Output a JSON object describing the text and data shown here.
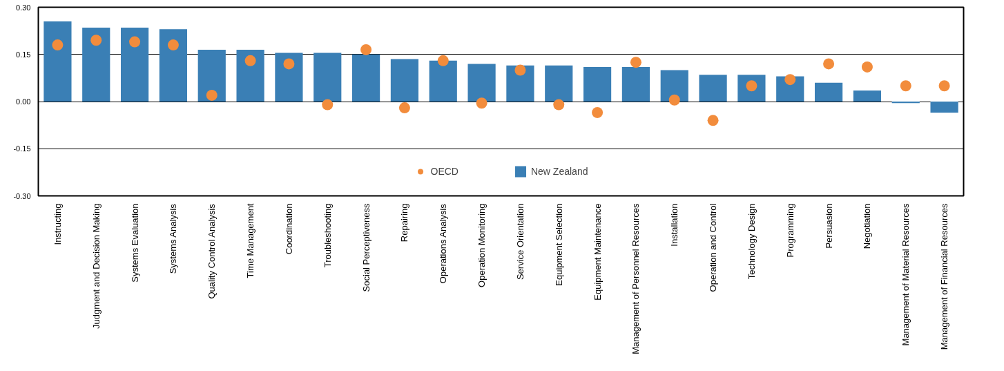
{
  "chart_data": {
    "type": "bar",
    "categories": [
      "Instructing",
      "Judgment and Decision Making",
      "Systems Evaluation",
      "Systems Analysis",
      "Quality Control Analysis",
      "Time Management",
      "Coordination",
      "Troubleshooting",
      "Social Perceptiveness",
      "Repairing",
      "Operations Analysis",
      "Operation Monitoring",
      "Service Orientation",
      "Equipment Selection",
      "Equipment Maintenance",
      "Management of Personnel Resources",
      "Installation",
      "Operation and Control",
      "Technology Design",
      "Programming",
      "Persuasion",
      "Negotiation",
      "Management of Material Resources",
      "Management of Financial Resources"
    ],
    "series": [
      {
        "name": "New Zealand",
        "color": "#3a7fb5",
        "values": [
          0.255,
          0.235,
          0.235,
          0.23,
          0.165,
          0.165,
          0.155,
          0.155,
          0.15,
          0.135,
          0.13,
          0.12,
          0.115,
          0.115,
          0.11,
          0.11,
          0.1,
          0.085,
          0.085,
          0.08,
          0.06,
          0.035,
          -0.005,
          -0.035
        ]
      },
      {
        "name": "OECD",
        "type": "scatter",
        "color": "#f28c3c",
        "values": [
          0.18,
          0.195,
          0.19,
          0.18,
          0.02,
          0.13,
          0.12,
          -0.01,
          0.165,
          -0.02,
          0.13,
          -0.005,
          0.1,
          -0.01,
          -0.035,
          0.125,
          0.005,
          -0.06,
          0.05,
          0.07,
          0.12,
          0.11,
          0.05,
          0.05
        ]
      }
    ],
    "ylim": [
      -0.3,
      0.3
    ],
    "yticks": [
      {
        "value": 0.3,
        "label": "0.30"
      },
      {
        "value": 0.15,
        "label": "0.15"
      },
      {
        "value": 0,
        "label": "0.00"
      },
      {
        "value": -0.15,
        "label": "-0.15"
      },
      {
        "value": -0.3,
        "label": "-0.30"
      }
    ],
    "grid": "y",
    "legend": "bottom",
    "marker": "circle"
  }
}
